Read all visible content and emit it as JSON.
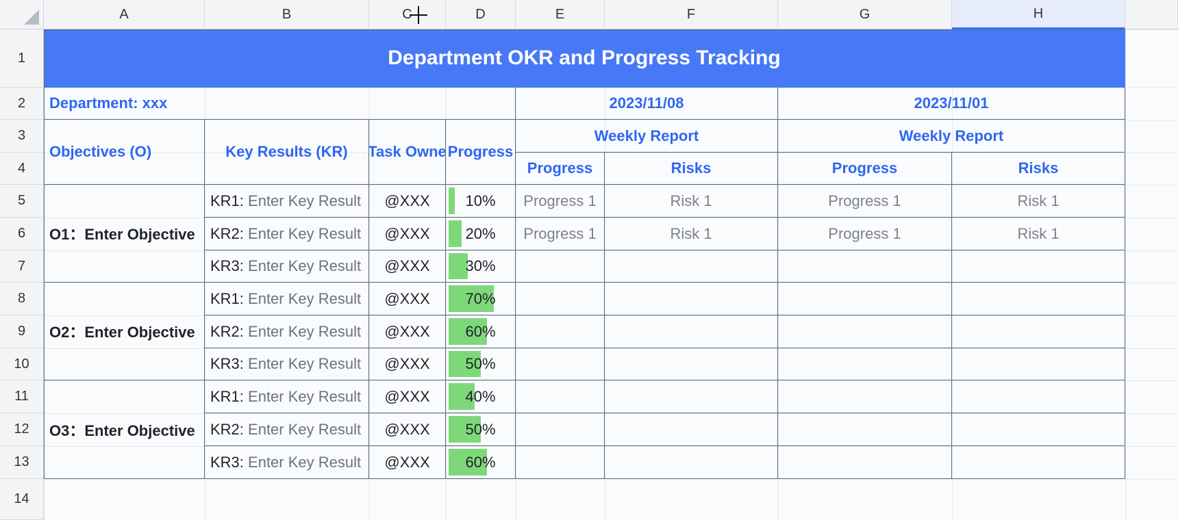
{
  "columns": [
    "A",
    "B",
    "C",
    "D",
    "E",
    "F",
    "G",
    "H"
  ],
  "rows": [
    "1",
    "2",
    "3",
    "4",
    "5",
    "6",
    "7",
    "8",
    "9",
    "10",
    "11",
    "12",
    "13",
    "14"
  ],
  "title": "Department OKR and Progress Tracking",
  "department_label": "Department: xxx",
  "dates": [
    "2023/11/08",
    "2023/11/01"
  ],
  "weekly_report_label": "Weekly Report",
  "headers": {
    "objectives": "Objectives (O)",
    "key_results": "Key Results (KR)",
    "task_owner": "Task Owne",
    "progress_col": "Progress",
    "progress": "Progress",
    "risks": "Risks"
  },
  "objectives": [
    "O1：Enter Objective",
    "O2：Enter Objective",
    "O3：Enter Objective"
  ],
  "kr_placeholder": "Enter Key Result",
  "kr_rows": [
    {
      "prefix": "KR1:",
      "owner": "@XXX",
      "progress": 0.1,
      "progress_label": "10%"
    },
    {
      "prefix": "KR2:",
      "owner": "@XXX",
      "progress": 0.2,
      "progress_label": "20%"
    },
    {
      "prefix": "KR3:",
      "owner": "@XXX",
      "progress": 0.3,
      "progress_label": "30%"
    },
    {
      "prefix": "KR1:",
      "owner": "@XXX",
      "progress": 0.7,
      "progress_label": "70%"
    },
    {
      "prefix": "KR2:",
      "owner": "@XXX",
      "progress": 0.6,
      "progress_label": "60%"
    },
    {
      "prefix": "KR3:",
      "owner": "@XXX",
      "progress": 0.5,
      "progress_label": "50%"
    },
    {
      "prefix": "KR1:",
      "owner": "@XXX",
      "progress": 0.4,
      "progress_label": "40%"
    },
    {
      "prefix": "KR2:",
      "owner": "@XXX",
      "progress": 0.5,
      "progress_label": "50%"
    },
    {
      "prefix": "KR3:",
      "owner": "@XXX",
      "progress": 0.6,
      "progress_label": "60%"
    }
  ],
  "report_rows": [
    {
      "w1_progress": "Progress 1",
      "w1_risk": "Risk 1",
      "w2_progress": "Progress 1",
      "w2_risk": "Risk 1"
    },
    {
      "w1_progress": "Progress 1",
      "w1_risk": "Risk 1",
      "w2_progress": "Progress 1",
      "w2_risk": "Risk 1"
    }
  ],
  "colors": {
    "title_bg": "#4778f6",
    "header_text": "#2f67f0",
    "progress_bar": "#7ed87a",
    "selected_col": "#e6ecfb"
  }
}
